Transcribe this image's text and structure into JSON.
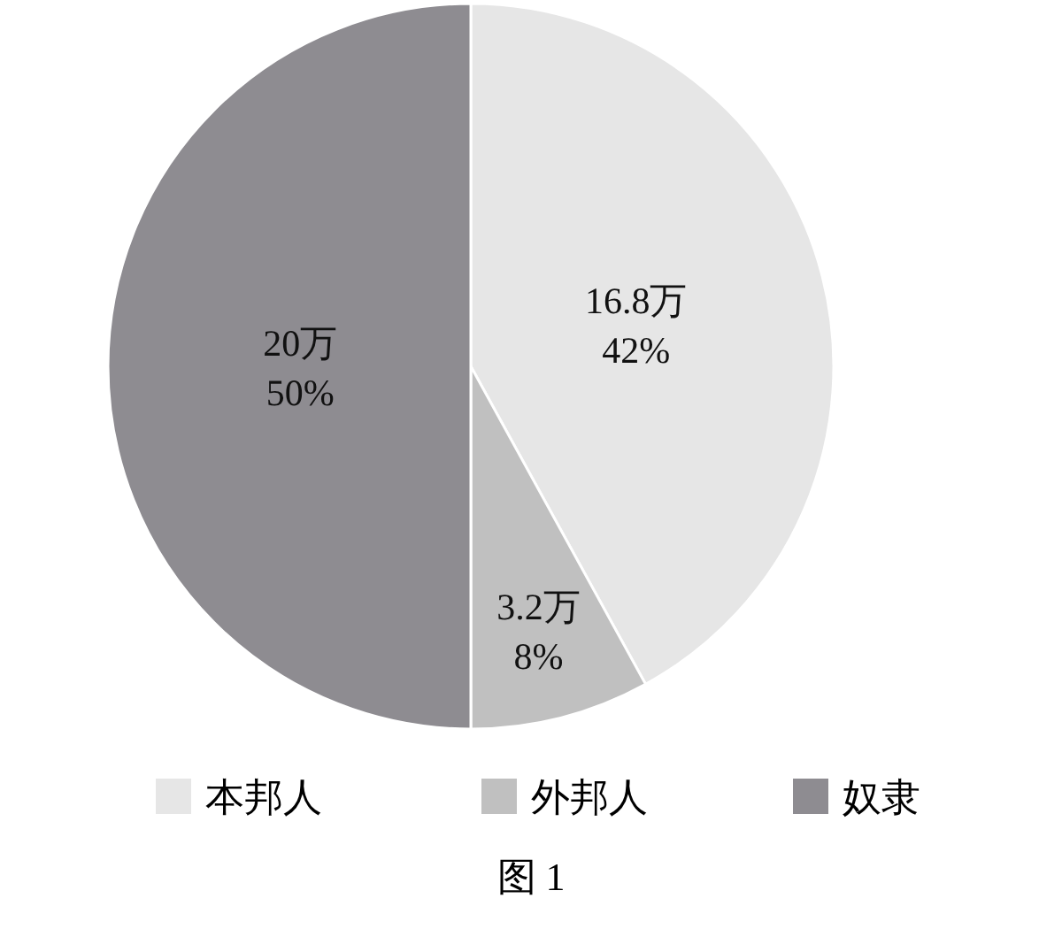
{
  "chart_data": {
    "type": "pie",
    "title": "图 1",
    "categories": [
      "本邦人",
      "外邦人",
      "奴隶"
    ],
    "values": [
      16.8,
      3.2,
      20
    ],
    "value_labels": [
      "16.8万\n42%",
      "3.2万\n8%",
      "20万\n50%"
    ],
    "colors": [
      "#e6e6e6",
      "#c0c0c0",
      "#8e8c91"
    ],
    "legend": "bottom"
  }
}
